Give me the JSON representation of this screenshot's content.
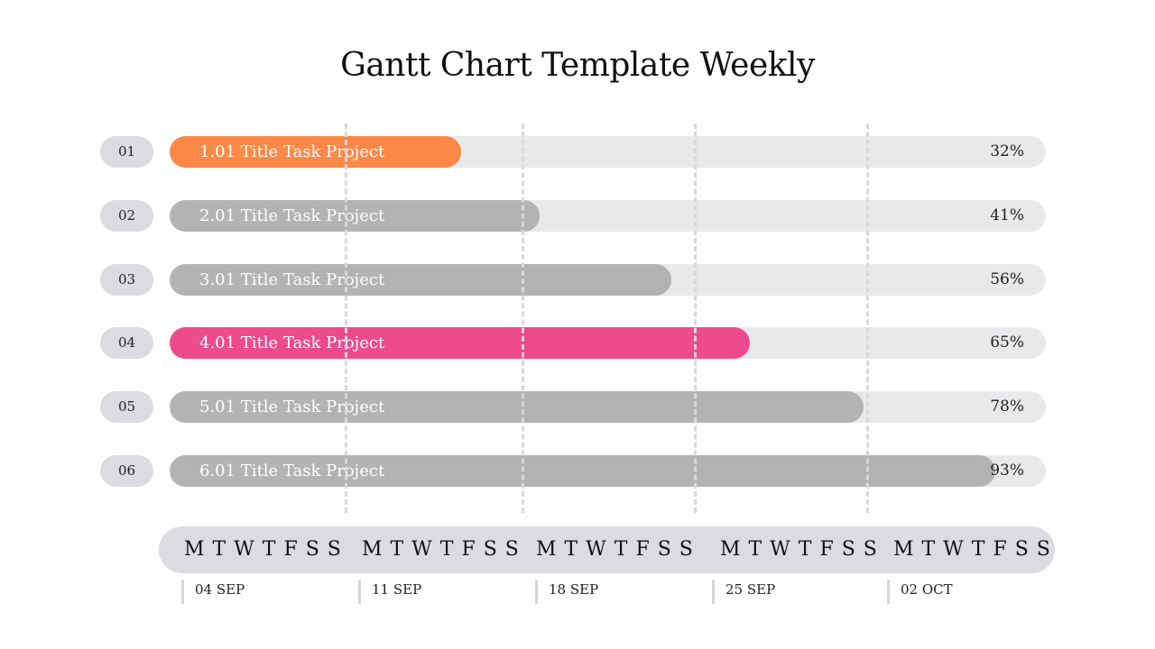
{
  "chart_data": {
    "type": "gantt",
    "title": "Gantt Chart Template Weekly",
    "tasks": [
      {
        "num": "01",
        "label": "1.01 Title Task Project",
        "value": 32,
        "pct_label": "32%",
        "color": "#fd8847"
      },
      {
        "num": "02",
        "label": "2.01 Title Task Project",
        "value": 41,
        "pct_label": "41%",
        "color": "#b3b3b3"
      },
      {
        "num": "03",
        "label": "3.01 Title Task Project",
        "value": 56,
        "pct_label": "56%",
        "color": "#b3b3b3"
      },
      {
        "num": "04",
        "label": "4.01 Title Task Project",
        "value": 65,
        "pct_label": "65%",
        "color": "#ed4b8e"
      },
      {
        "num": "05",
        "label": "5.01 Title Task Project",
        "value": 78,
        "pct_label": "78%",
        "color": "#b3b3b3"
      },
      {
        "num": "06",
        "label": "6.01 Title Task Project",
        "value": 93,
        "pct_label": "93%",
        "color": "#b3b3b3"
      }
    ],
    "weeks": [
      {
        "days": "M T W T F S S",
        "date": "04 SEP"
      },
      {
        "days": "M T W T F S S",
        "date": "11 SEP"
      },
      {
        "days": "M T W T F S S",
        "date": "18 SEP"
      },
      {
        "days": "M T W T F S S",
        "date": "25 SEP"
      },
      {
        "days": "M T W T F S S",
        "date": "02 OCT"
      }
    ],
    "track_color": "#e9e9ec",
    "xlim": [
      0,
      100
    ]
  }
}
